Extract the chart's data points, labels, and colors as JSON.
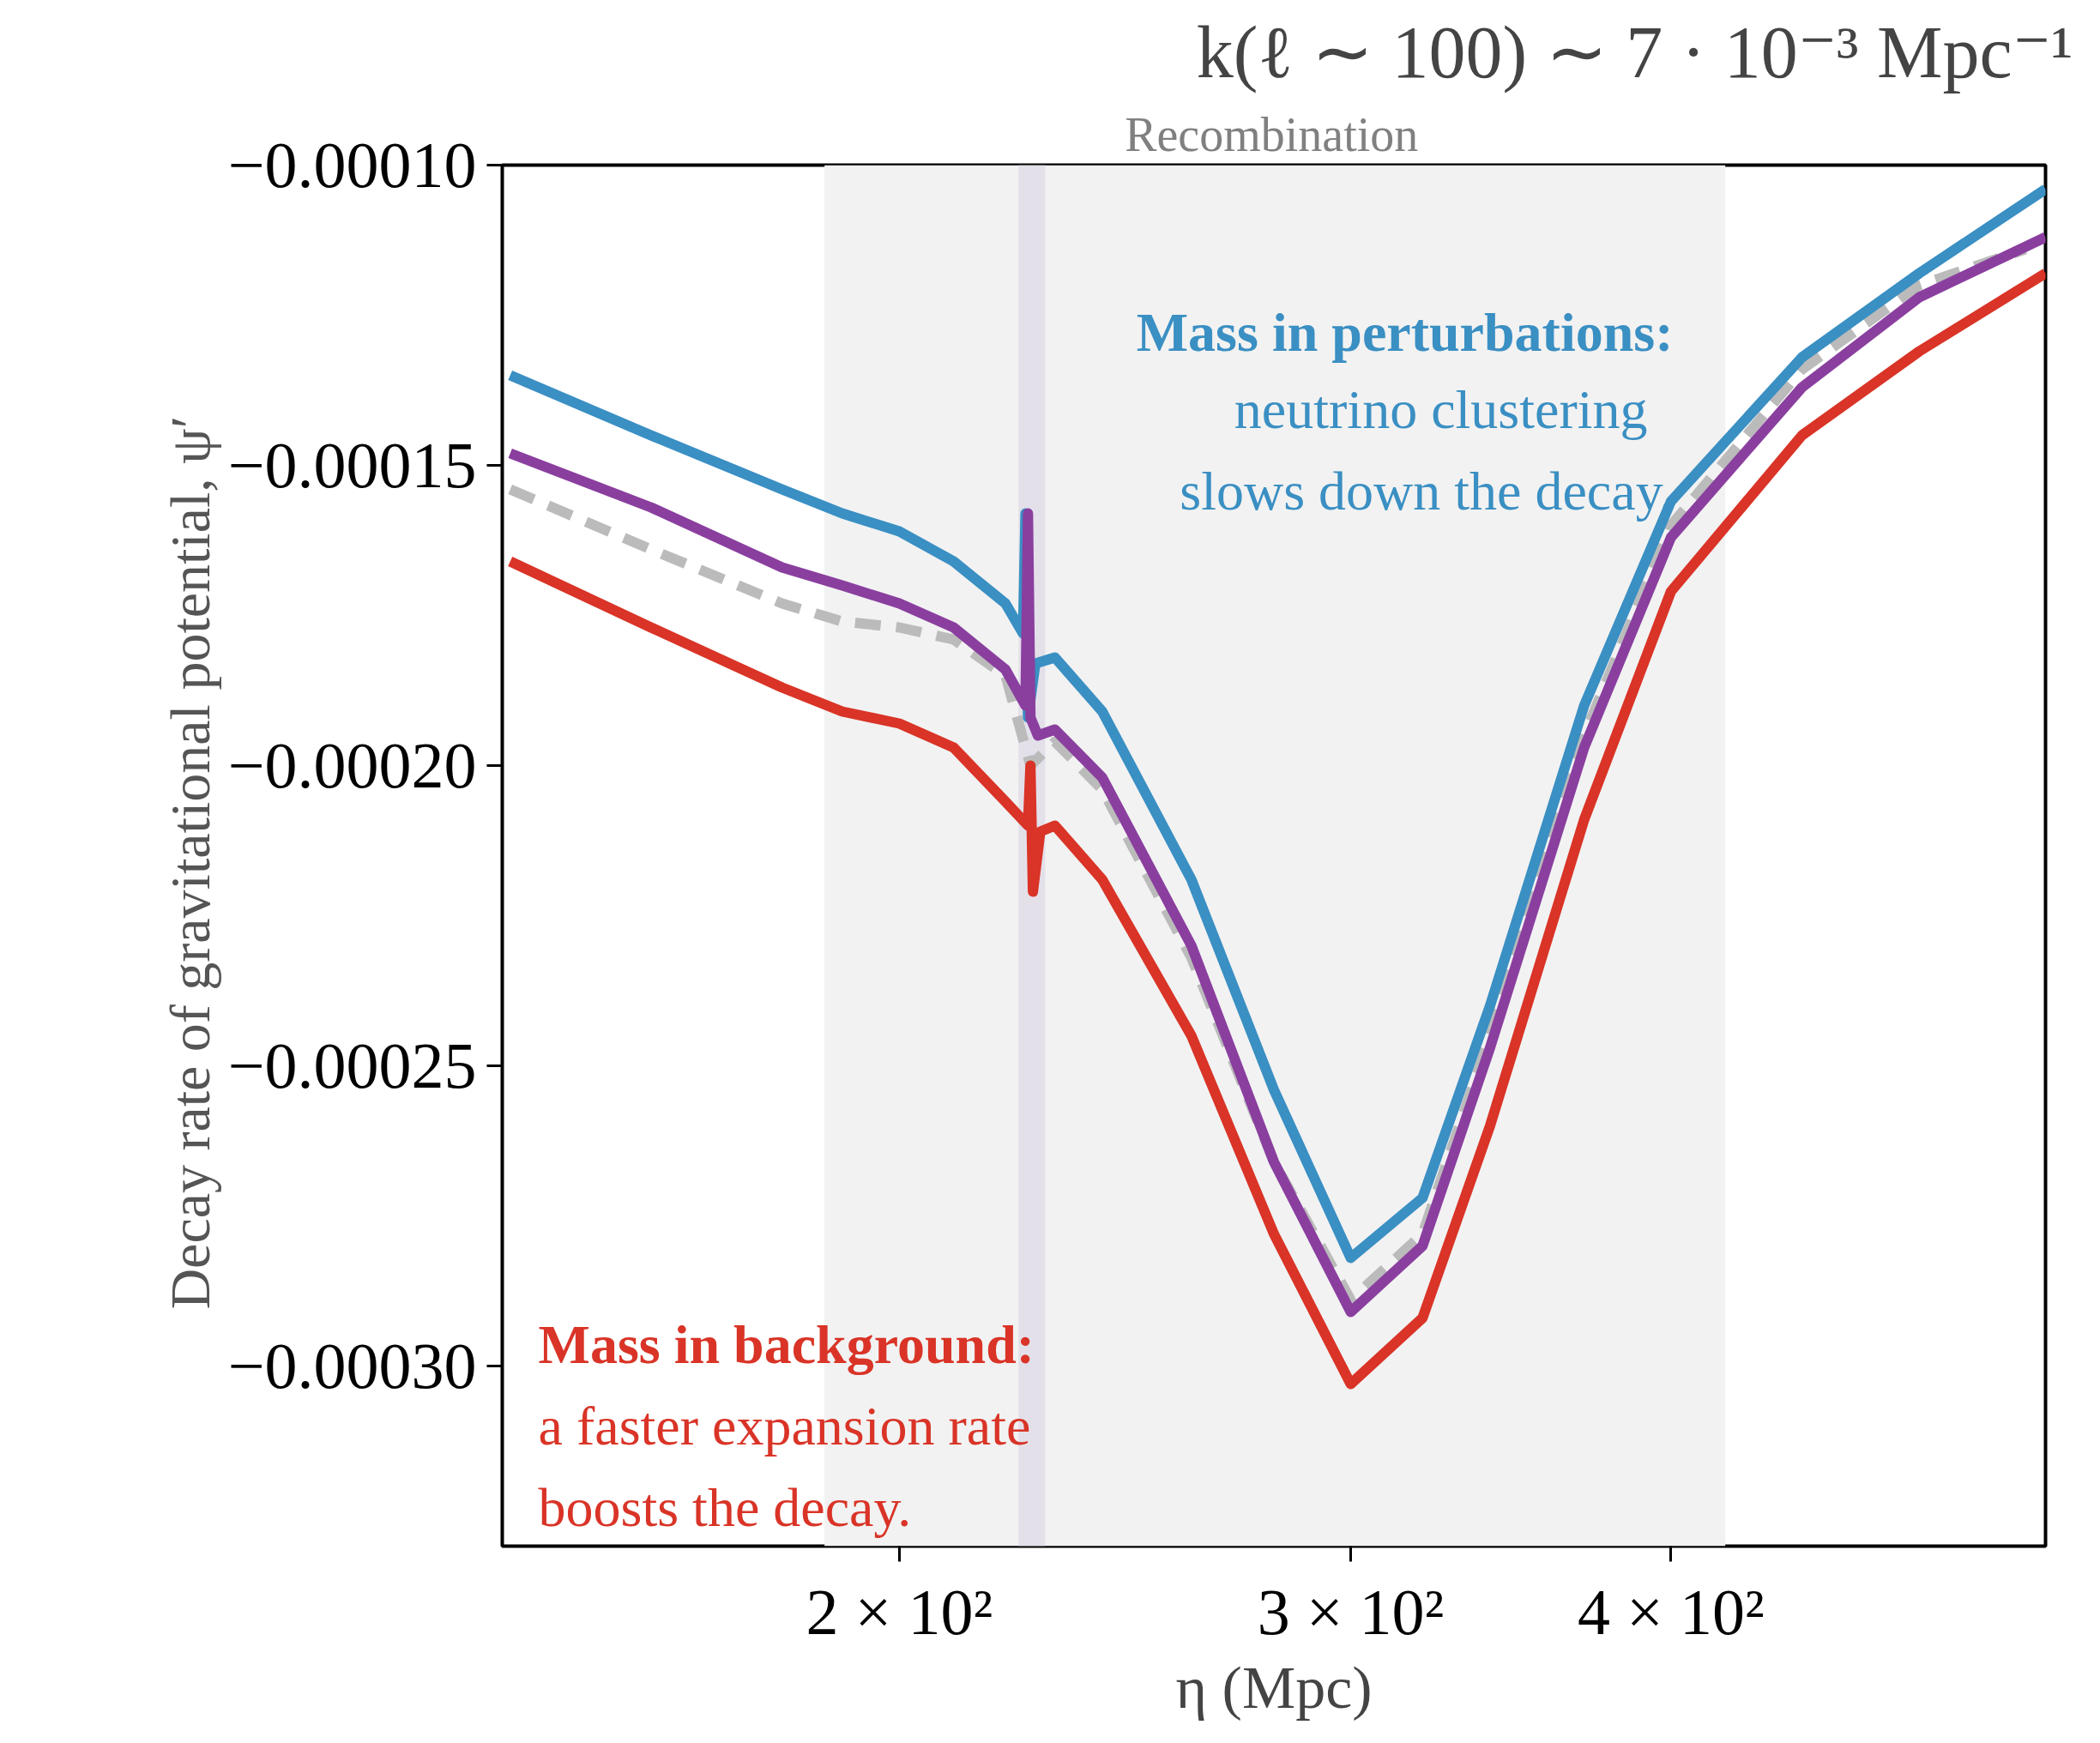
{
  "chart_data": {
    "type": "line",
    "title": "k(ℓ ∼ 100) ∼ 7 · 10⁻³ Mpc⁻¹",
    "xlabel": "η (Mpc)",
    "ylabel": "Decay rate of gravitational potential,  ψ′",
    "log": "x",
    "grid": false,
    "line_style": "solid",
    "xlim": [
      140,
      560
    ],
    "xticks": [
      {
        "value": 200,
        "label": "2 × 10²"
      },
      {
        "value": 300,
        "label": "3 × 10²"
      },
      {
        "value": 400,
        "label": "4 × 10²"
      }
    ],
    "ylim": [
      -0.00033,
      -0.0001
    ],
    "yticks": [
      {
        "value": -0.0001,
        "label": "−0.00010"
      },
      {
        "value": -0.00015,
        "label": "−0.00015"
      },
      {
        "value": -0.0002,
        "label": "−0.00020"
      },
      {
        "value": -0.00025,
        "label": "−0.00025"
      },
      {
        "value": -0.0003,
        "label": "−0.00030"
      }
    ],
    "bands": [
      {
        "axis": "x",
        "from": 187,
        "to": 420,
        "label": "Recombination",
        "color": "#f2f2f2"
      },
      {
        "axis": "x",
        "from": 222.6,
        "to": 228,
        "label": null,
        "color": "#e4e0ea"
      }
    ],
    "annotations": [
      "Mass in perturbations:",
      "neutrino clustering",
      "slows down the decay.",
      "Mass in background:",
      "a faster expansion rate",
      "boosts the decay."
    ],
    "series": [
      {
        "color": "#bbbbbb",
        "line_style": "dashed",
        "x": [
          141,
          160,
          180,
          190,
          200,
          210,
          220,
          225,
          230,
          240,
          260,
          280,
          300,
          320,
          340,
          370,
          400,
          450,
          500,
          550
        ],
        "values": [
          -0.000154,
          -0.000164,
          -0.000173,
          -0.000176,
          -0.000177,
          -0.000179,
          -0.000185,
          -0.0002,
          -0.000196,
          -0.000204,
          -0.000232,
          -0.000266,
          -0.000289,
          -0.000278,
          -0.000245,
          -0.000195,
          -0.00016,
          -0.000134,
          -0.00012,
          -0.000114
        ]
      },
      {
        "color": "#3a8fc3",
        "x": [
          141,
          160,
          180,
          190,
          200,
          210,
          220,
          223.5,
          224,
          224.5,
          226,
          230,
          240,
          260,
          280,
          300,
          320,
          340,
          370,
          400,
          450,
          500,
          560
        ],
        "values": [
          -0.000135,
          -0.000145,
          -0.000154,
          -0.000158,
          -0.000161,
          -0.000166,
          -0.000173,
          -0.000178,
          -0.000158,
          -0.000192,
          -0.000183,
          -0.000182,
          -0.000191,
          -0.000219,
          -0.000254,
          -0.000282,
          -0.000272,
          -0.00024,
          -0.00019,
          -0.000156,
          -0.000132,
          -0.000118,
          -0.000104
        ]
      },
      {
        "color": "#8a3f9f",
        "x": [
          141,
          160,
          180,
          190,
          200,
          210,
          220,
          224,
          224.5,
          225,
          226.5,
          230,
          240,
          260,
          280,
          300,
          320,
          340,
          370,
          400,
          450,
          500,
          560
        ],
        "values": [
          -0.000148,
          -0.000157,
          -0.000167,
          -0.00017,
          -0.000173,
          -0.000177,
          -0.000184,
          -0.00019,
          -0.000158,
          -0.000192,
          -0.000195,
          -0.000194,
          -0.000202,
          -0.00023,
          -0.000266,
          -0.000291,
          -0.00028,
          -0.000247,
          -0.000197,
          -0.000162,
          -0.000137,
          -0.000122,
          -0.000112
        ]
      },
      {
        "color": "#d93427",
        "x": [
          141,
          160,
          180,
          190,
          200,
          210,
          220,
          224.5,
          225,
          225.5,
          227,
          230,
          240,
          260,
          280,
          300,
          320,
          340,
          370,
          400,
          450,
          500,
          560
        ],
        "values": [
          -0.000166,
          -0.000177,
          -0.000187,
          -0.000191,
          -0.000193,
          -0.000197,
          -0.000206,
          -0.00021,
          -0.0002,
          -0.000221,
          -0.000211,
          -0.00021,
          -0.000219,
          -0.000245,
          -0.000278,
          -0.000303,
          -0.000292,
          -0.00026,
          -0.000209,
          -0.000171,
          -0.000145,
          -0.000131,
          -0.000118
        ]
      }
    ]
  }
}
